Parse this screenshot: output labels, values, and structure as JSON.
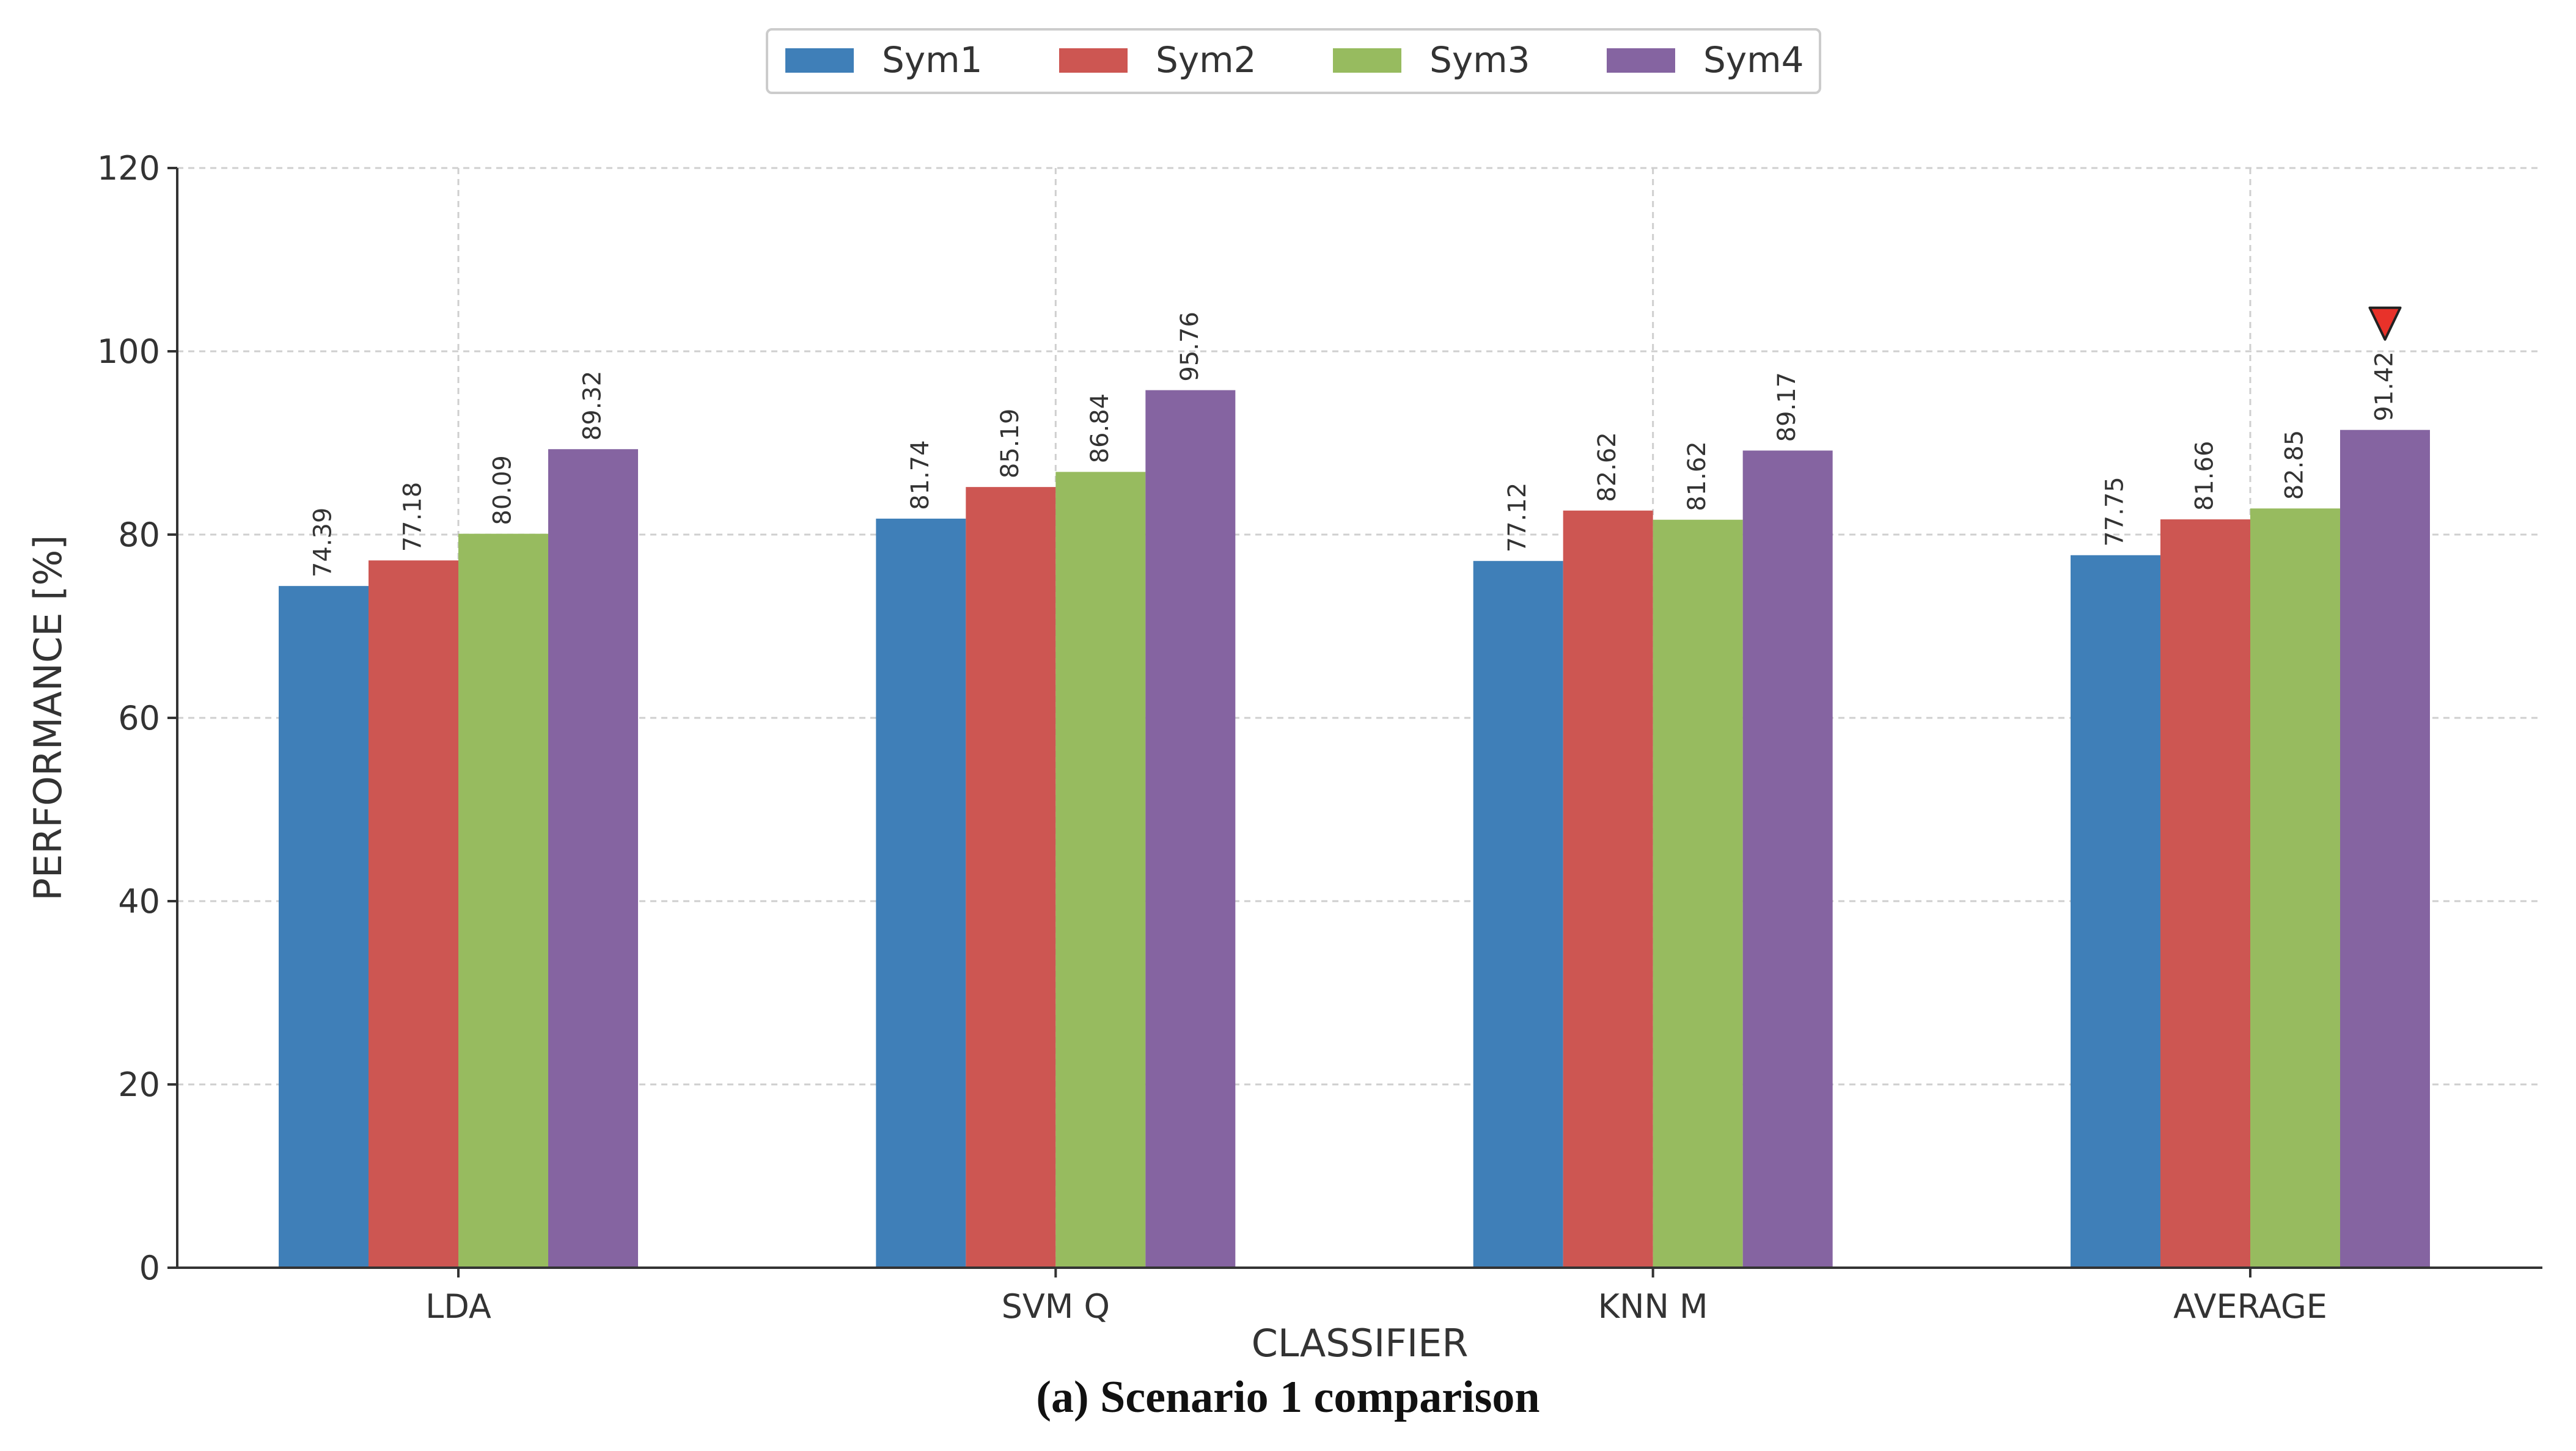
{
  "chart_data": {
    "type": "bar",
    "categories": [
      "LDA",
      "SVM Q",
      "KNN M",
      "AVERAGE"
    ],
    "series": [
      {
        "name": "Sym1",
        "color": "#3f7fb8",
        "values": [
          74.39,
          81.74,
          77.12,
          77.75
        ]
      },
      {
        "name": "Sym2",
        "color": "#cd5652",
        "values": [
          77.18,
          85.19,
          82.62,
          81.66
        ]
      },
      {
        "name": "Sym3",
        "color": "#97bb5f",
        "values": [
          80.09,
          86.84,
          81.62,
          82.85
        ]
      },
      {
        "name": "Sym4",
        "color": "#8564a1",
        "values": [
          89.32,
          95.76,
          89.17,
          91.42
        ]
      }
    ],
    "xlabel": "CLASSIFIER",
    "ylabel": "PERFORMANCE [%]",
    "ylim": [
      0,
      120
    ],
    "yticks": [
      0,
      20,
      40,
      60,
      80,
      100,
      120
    ],
    "grid": true,
    "legend_position": "top-center",
    "highlight": {
      "category": "AVERAGE",
      "series": "Sym4",
      "marker": "down-triangle",
      "color": "#e8322a"
    }
  },
  "caption": "(a) Scenario 1 comparison"
}
